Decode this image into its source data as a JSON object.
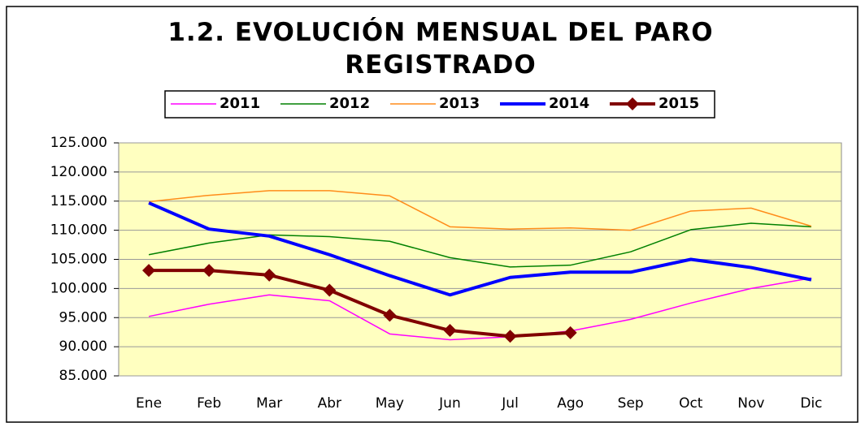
{
  "chart_data": {
    "type": "line",
    "title": "1.2. EVOLUCIÓN MENSUAL DEL PARO REGISTRADO",
    "categories": [
      "Ene",
      "Feb",
      "Mar",
      "Abr",
      "May",
      "Jun",
      "Jul",
      "Ago",
      "Sep",
      "Oct",
      "Nov",
      "Dic"
    ],
    "series": [
      {
        "name": "2011",
        "color": "#ff00ff",
        "values": [
          95200,
          97300,
          98900,
          97900,
          92200,
          91200,
          91700,
          92700,
          94700,
          97500,
          100000,
          101800
        ]
      },
      {
        "name": "2012",
        "color": "#008000",
        "values": [
          105800,
          107800,
          109200,
          108900,
          108100,
          105300,
          103700,
          104000,
          106300,
          110100,
          111200,
          110600
        ]
      },
      {
        "name": "2013",
        "color": "#ff8c1a",
        "values": [
          114900,
          116000,
          116800,
          116800,
          115900,
          110600,
          110200,
          110400,
          110000,
          113300,
          113800,
          110700
        ]
      },
      {
        "name": "2014",
        "color": "#0000ff",
        "values": [
          114700,
          110200,
          109000,
          105800,
          102200,
          98900,
          101900,
          102800,
          102800,
          105000,
          103600,
          101500
        ]
      },
      {
        "name": "2015",
        "color": "#800000",
        "values": [
          103100,
          103100,
          102300,
          99700,
          95400,
          92800,
          91800,
          92400,
          null,
          null,
          null,
          null
        ]
      }
    ],
    "ylim": [
      85000,
      125000
    ],
    "yticks": [
      {
        "value": 85000,
        "label": "85.000"
      },
      {
        "value": 90000,
        "label": "90.000"
      },
      {
        "value": 95000,
        "label": "95.000"
      },
      {
        "value": 100000,
        "label": "100.000"
      },
      {
        "value": 105000,
        "label": "105.000"
      },
      {
        "value": 110000,
        "label": "110.000"
      },
      {
        "value": 115000,
        "label": "115.000"
      },
      {
        "value": 120000,
        "label": "120.000"
      },
      {
        "value": 125000,
        "label": "125.000"
      }
    ],
    "grid": true
  }
}
